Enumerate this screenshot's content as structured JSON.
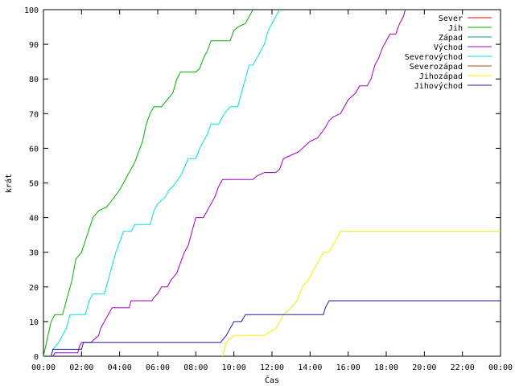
{
  "chart_data": {
    "type": "line",
    "xlabel": "Čas",
    "ylabel": "krát",
    "xlim": [
      0,
      24
    ],
    "ylim": [
      0,
      100
    ],
    "x_ticks": [
      0,
      2,
      4,
      6,
      8,
      10,
      12,
      14,
      16,
      18,
      20,
      22,
      24
    ],
    "x_tick_labels": [
      "00:00",
      "02:00",
      "04:00",
      "06:00",
      "08:00",
      "10:00",
      "12:00",
      "14:00",
      "16:00",
      "18:00",
      "20:00",
      "22:00",
      "00:00"
    ],
    "y_ticks": [
      0,
      10,
      20,
      30,
      40,
      50,
      60,
      70,
      80,
      90,
      100
    ],
    "y_tick_labels": [
      "0",
      "10",
      "20",
      "30",
      "40",
      "50",
      "60",
      "70",
      "80",
      "90",
      "100"
    ],
    "grid": false,
    "legend_position": "top-right",
    "series": [
      {
        "name": "Sever",
        "color": "#ff0000",
        "points": []
      },
      {
        "name": "Jih",
        "color": "#00b000",
        "points": [
          [
            0,
            0
          ],
          [
            0.2,
            5
          ],
          [
            0.4,
            10
          ],
          [
            0.6,
            12
          ],
          [
            1.0,
            12
          ],
          [
            1.2,
            16
          ],
          [
            1.5,
            22
          ],
          [
            1.7,
            28
          ],
          [
            2.0,
            30
          ],
          [
            2.3,
            35
          ],
          [
            2.6,
            40
          ],
          [
            2.9,
            42
          ],
          [
            3.3,
            43
          ],
          [
            3.6,
            45
          ],
          [
            4.0,
            48
          ],
          [
            4.4,
            52
          ],
          [
            4.8,
            56
          ],
          [
            5.0,
            59
          ],
          [
            5.2,
            62
          ],
          [
            5.4,
            67
          ],
          [
            5.6,
            70
          ],
          [
            5.8,
            72
          ],
          [
            6.2,
            72
          ],
          [
            6.5,
            74
          ],
          [
            6.8,
            76
          ],
          [
            7.0,
            80
          ],
          [
            7.2,
            82
          ],
          [
            7.6,
            82
          ],
          [
            8.0,
            82
          ],
          [
            8.2,
            83
          ],
          [
            8.4,
            86
          ],
          [
            8.6,
            88
          ],
          [
            8.8,
            91
          ],
          [
            9.2,
            91
          ],
          [
            9.8,
            91
          ],
          [
            10.0,
            94
          ],
          [
            10.2,
            95
          ],
          [
            10.6,
            96
          ],
          [
            10.8,
            98
          ],
          [
            11.0,
            100
          ]
        ]
      },
      {
        "name": "Západ",
        "color": "#00a0a0",
        "points": []
      },
      {
        "name": "Východ",
        "color": "#a000c0",
        "points": [
          [
            0.5,
            0
          ],
          [
            0.6,
            1
          ],
          [
            1.8,
            1
          ],
          [
            1.9,
            3
          ],
          [
            2.0,
            4
          ],
          [
            2.5,
            4
          ],
          [
            2.7,
            5
          ],
          [
            2.9,
            6
          ],
          [
            3.0,
            8
          ],
          [
            3.2,
            10
          ],
          [
            3.4,
            12
          ],
          [
            3.6,
            14
          ],
          [
            4.0,
            14
          ],
          [
            4.5,
            14
          ],
          [
            4.6,
            16
          ],
          [
            5.0,
            16
          ],
          [
            5.7,
            16
          ],
          [
            5.8,
            17
          ],
          [
            6.0,
            18
          ],
          [
            6.2,
            20
          ],
          [
            6.5,
            20
          ],
          [
            6.7,
            22
          ],
          [
            7.0,
            24
          ],
          [
            7.2,
            27
          ],
          [
            7.4,
            30
          ],
          [
            7.6,
            32
          ],
          [
            7.8,
            36
          ],
          [
            8.0,
            40
          ],
          [
            8.4,
            40
          ],
          [
            8.6,
            42
          ],
          [
            8.8,
            44
          ],
          [
            9.0,
            46
          ],
          [
            9.2,
            49
          ],
          [
            9.4,
            51
          ],
          [
            10.0,
            51
          ],
          [
            11.0,
            51
          ],
          [
            11.2,
            52
          ],
          [
            11.6,
            53
          ],
          [
            12.2,
            53
          ],
          [
            12.4,
            54
          ],
          [
            12.6,
            57
          ],
          [
            13.0,
            58
          ],
          [
            13.4,
            59
          ],
          [
            13.6,
            60
          ],
          [
            14.0,
            62
          ],
          [
            14.4,
            63
          ],
          [
            14.8,
            66
          ],
          [
            15.0,
            68
          ],
          [
            15.2,
            69
          ],
          [
            15.6,
            70
          ],
          [
            15.8,
            72
          ],
          [
            16.0,
            74
          ],
          [
            16.2,
            75
          ],
          [
            16.4,
            76
          ],
          [
            16.6,
            78
          ],
          [
            17.0,
            78
          ],
          [
            17.2,
            80
          ],
          [
            17.4,
            84
          ],
          [
            17.6,
            86
          ],
          [
            17.8,
            89
          ],
          [
            18.0,
            91
          ],
          [
            18.2,
            93
          ],
          [
            18.5,
            93
          ],
          [
            18.7,
            96
          ],
          [
            18.9,
            98
          ],
          [
            19.0,
            100
          ]
        ]
      },
      {
        "name": "Severovýchod",
        "color": "#00e0e0",
        "points": [
          [
            0.4,
            0
          ],
          [
            0.5,
            2
          ],
          [
            0.8,
            4
          ],
          [
            1.0,
            6
          ],
          [
            1.2,
            8
          ],
          [
            1.4,
            12
          ],
          [
            2.2,
            12
          ],
          [
            2.4,
            16
          ],
          [
            2.6,
            18
          ],
          [
            3.2,
            18
          ],
          [
            3.4,
            22
          ],
          [
            3.6,
            26
          ],
          [
            3.8,
            30
          ],
          [
            4.0,
            33
          ],
          [
            4.2,
            36
          ],
          [
            4.6,
            36
          ],
          [
            4.8,
            38
          ],
          [
            5.6,
            38
          ],
          [
            5.8,
            42
          ],
          [
            6.0,
            44
          ],
          [
            6.4,
            46
          ],
          [
            6.6,
            48
          ],
          [
            6.8,
            49
          ],
          [
            7.2,
            52
          ],
          [
            7.6,
            57
          ],
          [
            8.0,
            57
          ],
          [
            8.2,
            60
          ],
          [
            8.6,
            64
          ],
          [
            8.8,
            67
          ],
          [
            9.2,
            67
          ],
          [
            9.5,
            70
          ],
          [
            9.8,
            72
          ],
          [
            10.2,
            72
          ],
          [
            10.4,
            76
          ],
          [
            10.6,
            80
          ],
          [
            10.8,
            84
          ],
          [
            11.0,
            84
          ],
          [
            11.2,
            86
          ],
          [
            11.6,
            90
          ],
          [
            11.8,
            94
          ],
          [
            12.0,
            96
          ],
          [
            12.2,
            98
          ],
          [
            12.4,
            100
          ]
        ]
      },
      {
        "name": "Severozápad",
        "color": "#b05000",
        "points": []
      },
      {
        "name": "Jihozápad",
        "color": "#f0f000",
        "points": [
          [
            9.4,
            0
          ],
          [
            9.6,
            4
          ],
          [
            10.0,
            6
          ],
          [
            11.2,
            6
          ],
          [
            11.6,
            6
          ],
          [
            12.2,
            8
          ],
          [
            12.4,
            10
          ],
          [
            12.6,
            12
          ],
          [
            13.0,
            14
          ],
          [
            13.3,
            16
          ],
          [
            13.6,
            20
          ],
          [
            13.9,
            22
          ],
          [
            14.1,
            24
          ],
          [
            14.3,
            26
          ],
          [
            14.5,
            28
          ],
          [
            14.7,
            30
          ],
          [
            15.0,
            30
          ],
          [
            15.2,
            32
          ],
          [
            15.4,
            34
          ],
          [
            15.6,
            36
          ],
          [
            24.0,
            36
          ]
        ]
      },
      {
        "name": "Jihovýchod",
        "color": "#2020a0",
        "points": [
          [
            0.4,
            0
          ],
          [
            0.5,
            2
          ],
          [
            2.0,
            2
          ],
          [
            2.1,
            4
          ],
          [
            2.4,
            4
          ],
          [
            9.0,
            4
          ],
          [
            9.3,
            4
          ],
          [
            9.6,
            6
          ],
          [
            9.8,
            8
          ],
          [
            10.0,
            10
          ],
          [
            10.4,
            10
          ],
          [
            10.6,
            12
          ],
          [
            12.0,
            12
          ],
          [
            14.7,
            12
          ],
          [
            14.8,
            14
          ],
          [
            15.0,
            16
          ],
          [
            24.0,
            16
          ]
        ]
      }
    ]
  }
}
